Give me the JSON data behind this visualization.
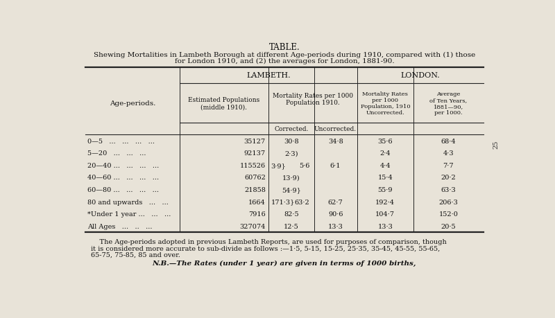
{
  "title": "TABLE.",
  "subtitle1": "Shewing Mortalities in Lambeth Borough at different Age-periods during 1910, compared with (1) those",
  "subtitle2": "for London 1910, and (2) the averages for London, 1881-90.",
  "bg_color": "#e8e3d8",
  "age_periods": [
    "0—5   ...   ...   ...   ...",
    "5—20   ...   ...   ...",
    "20—40 ...   ...   ...   ...",
    "40—60 ...   ...   ...   ...",
    "60—80 ...   ...   ...   ...",
    "80 and upwards   ...   ...",
    "*Under 1 year ...   ...   ...",
    "All Ages   ...   ..   ..."
  ],
  "populations": [
    "35127",
    "92137",
    "115526",
    "60762",
    "21858",
    "1664",
    "7916",
    "327074"
  ],
  "corrected_left": [
    "30·8",
    "2·3)",
    "3·9}",
    "13·9)",
    "54·9}",
    "171·3}",
    "82·5",
    "12·5"
  ],
  "corrected_right": [
    "",
    "",
    "5·6",
    "",
    "",
    "63·2",
    "",
    ""
  ],
  "uncorrected": [
    "34·8",
    "",
    "6·1",
    "",
    "",
    "62·7",
    "90·6",
    "13·3"
  ],
  "london_1910": [
    "35·6",
    "2·4",
    "4·4",
    "15·4",
    "55·9",
    "192·4",
    "104·7",
    "13·3"
  ],
  "london_avg": [
    "68·4",
    "4·3",
    "7·7",
    "20·2",
    "63·3",
    "206·3",
    "152·0",
    "20·5"
  ],
  "footnote1": "    The Age-periods adopted in previous Lambeth Reports, are used for purposes of comparison, though",
  "footnote2": "it is considered more accurate to sub-divide as follows :—1·5, 5-15, 15-25, 25·35, 35-45, 45-55, 55-65,",
  "footnote3": "65-75, 75-85, 85 and over.",
  "footnote4": "N.B.—The Rates (under 1 year) are given in terms of 1000 births,",
  "page_num": "25"
}
